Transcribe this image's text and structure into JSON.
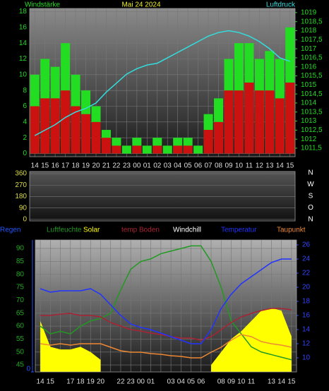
{
  "chart_data": [
    {
      "type": "combo",
      "title": "Mai 24 2024",
      "y_label": "Windstärke",
      "y2_label": "Luftdruck",
      "categories": [
        "14",
        "15",
        "16",
        "17",
        "18",
        "19",
        "20",
        "21",
        "22",
        "23",
        "00",
        "01",
        "02",
        "03",
        "04",
        "05",
        "06",
        "07",
        "08",
        "09",
        "10",
        "11",
        "12",
        "13",
        "14",
        "15"
      ],
      "ylim": [
        -0.4,
        18.4
      ],
      "yticks": [
        0,
        2,
        4,
        6,
        8,
        10,
        12,
        14,
        16,
        18
      ],
      "y2lim": [
        1011.03,
        1019.23
      ],
      "y2ticks": [
        {
          "value": 1011.5,
          "label": "1011,5"
        },
        1012,
        {
          "value": 1012.5,
          "label": "1012,5"
        },
        1013,
        {
          "value": 1013.5,
          "label": "1013,5"
        },
        1014,
        {
          "value": 1014.5,
          "label": "1014,5"
        },
        1015,
        {
          "value": 1015.5,
          "label": "1015,5"
        },
        1016,
        {
          "value": 1016.5,
          "label": "1016,5"
        },
        1017,
        {
          "value": 1017.5,
          "label": "1017,5"
        },
        1018,
        {
          "value": 1018.5,
          "label": "1018,5"
        },
        1019
      ],
      "grid": true,
      "series": [
        {
          "type": "bar",
          "color": "#22dd22",
          "values": [
            10,
            12,
            11,
            14,
            10,
            8,
            6,
            3,
            2,
            1,
            2,
            1,
            2,
            1,
            2,
            2,
            1,
            5,
            7,
            12,
            14,
            14,
            12,
            13,
            12,
            16
          ]
        },
        {
          "type": "bar",
          "color": "#cc1111",
          "values": [
            6,
            7,
            7,
            8,
            6,
            5,
            4,
            2,
            1,
            0,
            1,
            0,
            1,
            0,
            1,
            1,
            0,
            3,
            4,
            8,
            8,
            9,
            8,
            8,
            7,
            9
          ]
        },
        {
          "type": "line",
          "axis": "y2",
          "color": "#33dddd",
          "values": [
            1012.2,
            1012.5,
            1012.8,
            1013.2,
            1013.5,
            1013.7,
            1014.0,
            1014.6,
            1015.1,
            1015.6,
            1015.9,
            1016.1,
            1016.2,
            1016.5,
            1016.8,
            1017.1,
            1017.4,
            1017.7,
            1017.9,
            1018.0,
            1017.9,
            1017.7,
            1017.4,
            1017.0,
            1016.5,
            1016.3
          ]
        }
      ]
    },
    {
      "type": "direction",
      "ylim": [
        -12,
        377
      ],
      "yticks": [
        0,
        90,
        180,
        270,
        360
      ],
      "direction_labels": [
        "N",
        "W",
        "S",
        "O",
        "N"
      ],
      "grid": true,
      "series": []
    },
    {
      "type": "combo",
      "categories": [
        "14",
        "15",
        null,
        "17",
        "18",
        "19",
        "20",
        null,
        "22",
        "23",
        "00",
        "01",
        null,
        "03",
        "04",
        "05",
        "06",
        null,
        "08",
        "09",
        "10",
        "11",
        null,
        "13",
        "14",
        "15"
      ],
      "ylim": [
        42.3,
        93.3
      ],
      "yticks": [
        45,
        50,
        55,
        60,
        65,
        70,
        75,
        80,
        85,
        90
      ],
      "y2lim": [
        8,
        26.7
      ],
      "y2ticks": [
        10,
        12,
        14,
        16,
        18,
        20,
        22,
        24,
        26
      ],
      "rain_ylim": [
        0,
        5
      ],
      "rain_yticks": [
        0
      ],
      "grid": true,
      "series": [
        {
          "name": "Regen",
          "type": "line",
          "color": "#2255ff",
          "values": [
            null,
            null,
            null,
            null,
            null,
            null,
            null,
            null,
            null,
            null,
            null,
            null,
            null,
            null,
            null,
            null,
            null,
            null,
            null,
            null,
            null,
            null,
            null,
            null,
            null,
            null
          ]
        },
        {
          "name": "Luftfeuchte",
          "type": "line",
          "color": "#229922",
          "values": [
            60,
            57,
            58,
            57,
            60,
            62,
            63,
            65,
            74,
            82,
            85,
            86,
            88,
            89,
            90,
            91,
            91,
            85,
            75,
            62,
            57,
            52,
            50,
            49,
            48,
            47
          ]
        },
        {
          "name": "Solar",
          "type": "area",
          "color": "#ffff00",
          "values": [
            62,
            52,
            51,
            51,
            52,
            50,
            47,
            null,
            null,
            null,
            null,
            null,
            null,
            null,
            null,
            null,
            null,
            45,
            50,
            55,
            58,
            62,
            66,
            67,
            66,
            56
          ]
        },
        {
          "name": "temp Boden",
          "type": "line",
          "axis": "y2",
          "color": "#aa2233",
          "values": [
            16.0,
            16.0,
            16.2,
            16.3,
            16.0,
            16.0,
            15.8,
            15.0,
            14.5,
            14.0,
            13.8,
            13.5,
            13.3,
            13.0,
            12.8,
            12.8,
            12.5,
            13.0,
            14.0,
            15.0,
            15.8,
            16.3,
            16.7,
            17.0,
            17.0,
            16.8
          ]
        },
        {
          "name": "Windchill",
          "type": "line",
          "axis": "y2",
          "color": "#ffffff",
          "values": [
            null,
            null,
            null,
            null,
            null,
            null,
            null,
            null,
            null,
            null,
            null,
            null,
            null,
            null,
            null,
            null,
            null,
            null,
            null,
            null,
            null,
            null,
            null,
            null,
            null,
            null
          ]
        },
        {
          "name": "Temperatur",
          "type": "line",
          "axis": "y2",
          "color": "#2233ff",
          "values": [
            19.8,
            19.3,
            19.5,
            19.5,
            19.5,
            19.8,
            19.0,
            17.5,
            16.0,
            14.8,
            14.3,
            14.0,
            13.5,
            13.0,
            12.5,
            12.0,
            12.0,
            14.0,
            17.0,
            19.0,
            20.5,
            21.5,
            22.5,
            23.5,
            24.0,
            24.0
          ]
        },
        {
          "name": "Taupunkt",
          "type": "line",
          "axis": "y2",
          "color": "#ee8833",
          "values": [
            12.0,
            11.8,
            12.0,
            11.8,
            12.0,
            12.0,
            12.0,
            11.5,
            11.0,
            10.8,
            10.8,
            10.6,
            10.5,
            10.3,
            10.2,
            10.0,
            10.0,
            10.8,
            11.5,
            12.5,
            13.3,
            13.0,
            12.3,
            12.0,
            11.8,
            11.5
          ]
        }
      ]
    }
  ]
}
